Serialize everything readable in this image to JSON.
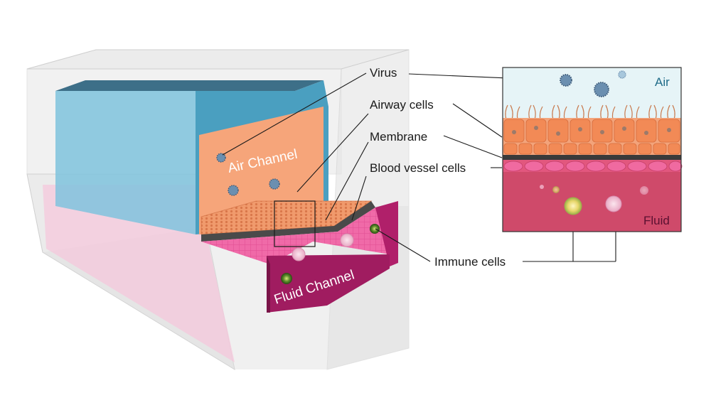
{
  "labels": {
    "virus": "Virus",
    "airway_cells": "Airway cells",
    "membrane": "Membrane",
    "blood_vessel_cells": "Blood vessel cells",
    "immune_cells": "Immune cells"
  },
  "channels": {
    "air": "Air Channel",
    "fluid": "Fluid Channel"
  },
  "inset": {
    "air": "Air",
    "fluid": "Fluid"
  },
  "colors": {
    "air_channel": "#4a9fc0",
    "airway_cells": "#f0956a",
    "fluid_channel": "#b0206a",
    "inset_air": "#e6f4f7",
    "inset_fluid": "#cf4a6a",
    "virus": "#6b8fb0",
    "immune_cell": "#e7d66a"
  }
}
